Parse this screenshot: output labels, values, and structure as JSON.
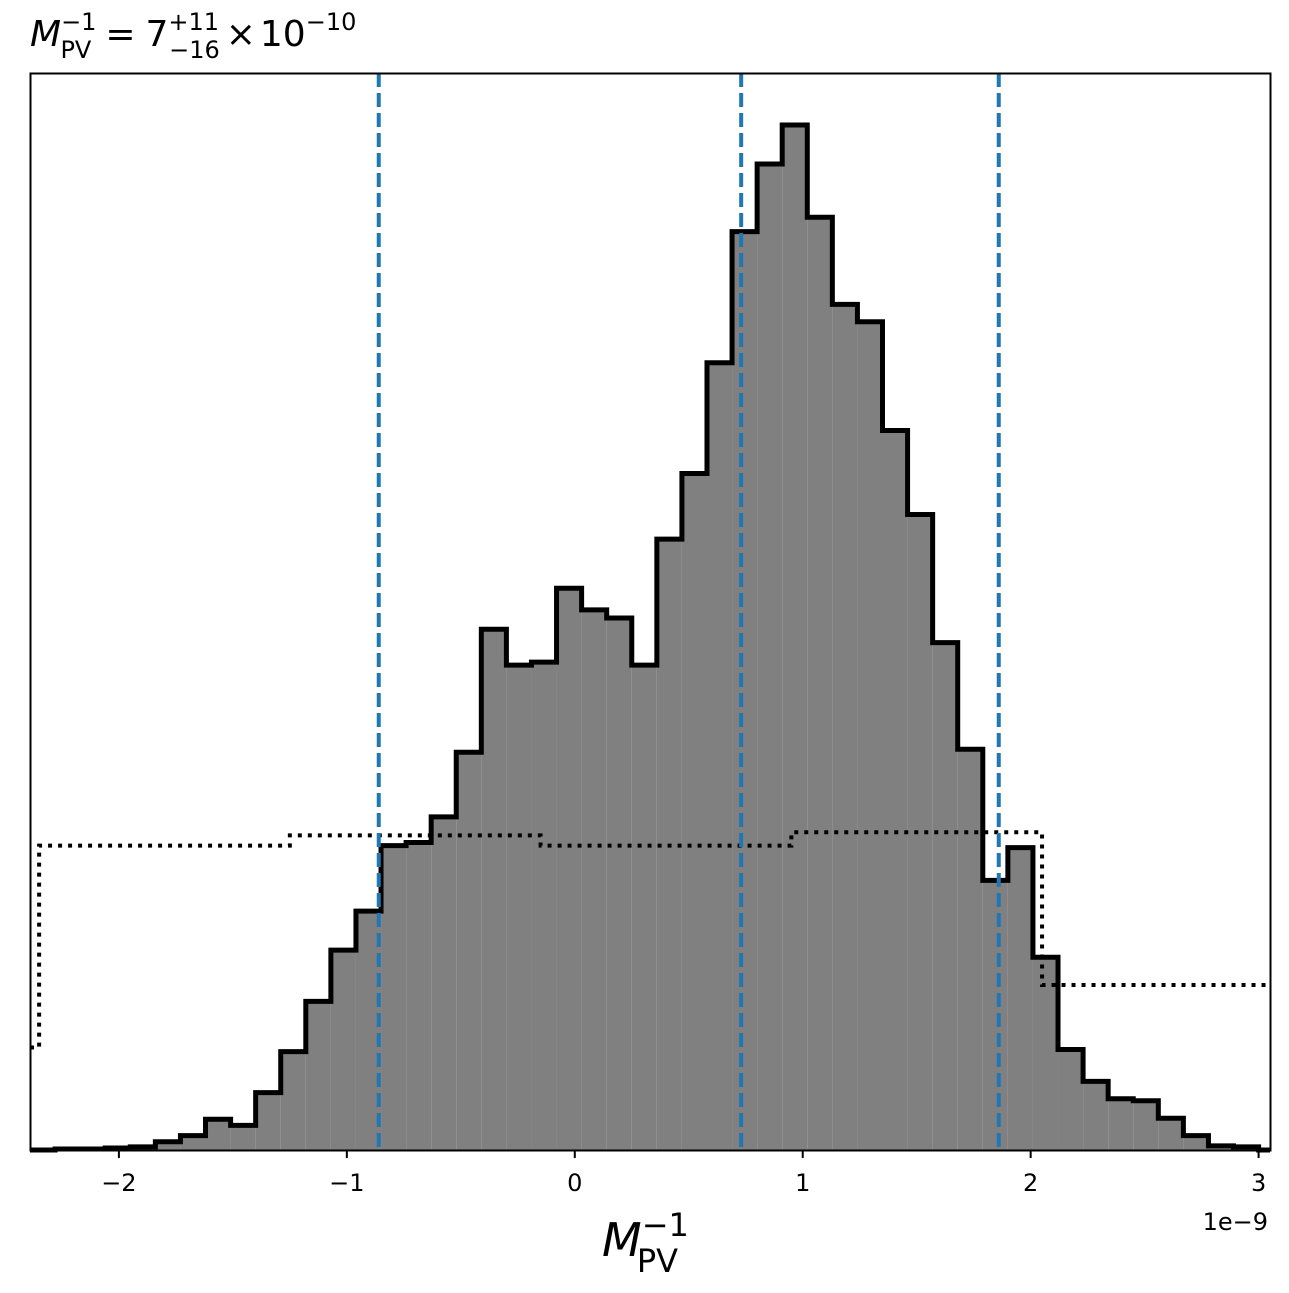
{
  "chart_data": {
    "type": "histogram",
    "title": {
      "symbol": "M",
      "superscript": "−1",
      "subscript": "PV",
      "equals": "=",
      "value": "7",
      "upper_err": "+11",
      "lower_err": "−16",
      "times": "×",
      "base": "10",
      "exponent": "−10"
    },
    "xlabel": {
      "symbol": "M",
      "superscript": "−1",
      "subscript": "PV"
    },
    "x_offset_label": "1e−9",
    "xlim": [
      -2.39e-09,
      3.05e-09
    ],
    "ylim": [
      0,
      1.0
    ],
    "x_ticks": [
      -2e-09,
      -1e-09,
      0,
      1e-09,
      2e-09,
      3e-09
    ],
    "x_tick_labels": [
      "−2",
      "−1",
      "0",
      "1",
      "2",
      "3"
    ],
    "y_ticks_shown": false,
    "grid": false,
    "posterior": {
      "bin_edges": [
        -2.39,
        -2.28,
        -2.17,
        -2.06,
        -1.95,
        -1.84,
        -1.73,
        -1.62,
        -1.51,
        -1.4,
        -1.29,
        -1.18,
        -1.07,
        -0.96,
        -0.85,
        -0.74,
        -0.63,
        -0.52,
        -0.41,
        -0.3,
        -0.19,
        -0.08,
        0.03,
        0.14,
        0.25,
        0.36,
        0.47,
        0.58,
        0.69,
        0.8,
        0.91,
        1.02,
        1.13,
        1.24,
        1.35,
        1.46,
        1.57,
        1.68,
        1.79,
        1.9,
        2.01,
        2.12,
        2.23,
        2.34,
        2.45,
        2.56,
        2.67,
        2.78,
        2.89,
        3.0,
        3.05
      ],
      "bin_edges_scale": 1e-09,
      "density": [
        0.0,
        0.001,
        0.001,
        0.002,
        0.003,
        0.008,
        0.014,
        0.03,
        0.024,
        0.056,
        0.096,
        0.145,
        0.195,
        0.233,
        0.297,
        0.3,
        0.325,
        0.388,
        0.508,
        0.473,
        0.476,
        0.548,
        0.527,
        0.519,
        0.473,
        0.596,
        0.66,
        0.768,
        0.896,
        0.962,
        1.0,
        0.91,
        0.825,
        0.808,
        0.702,
        0.62,
        0.495,
        0.391,
        0.263,
        0.295,
        0.188,
        0.098,
        0.067,
        0.05,
        0.048,
        0.031,
        0.014,
        0.004,
        0.003,
        0.0
      ],
      "fill_color": "#808080",
      "edge_color": "#000000"
    },
    "prior": {
      "style": "dotted",
      "color": "#000000",
      "steps": [
        {
          "x0": -2.39,
          "x1": -2.35,
          "y": 0.1
        },
        {
          "x0": -2.35,
          "x1": -1.25,
          "y": 0.297
        },
        {
          "x0": -1.25,
          "x1": -0.15,
          "y": 0.307
        },
        {
          "x0": -0.15,
          "x1": 0.95,
          "y": 0.297
        },
        {
          "x0": 0.95,
          "x1": 2.05,
          "y": 0.31
        },
        {
          "x0": 2.05,
          "x1": 3.05,
          "y": 0.161
        }
      ],
      "scale": 1e-09
    },
    "quantile_lines": {
      "values": [
        -8.6e-10,
        7.3e-10,
        1.86e-09
      ],
      "style": "dashed",
      "color": "#1f77b4"
    }
  }
}
